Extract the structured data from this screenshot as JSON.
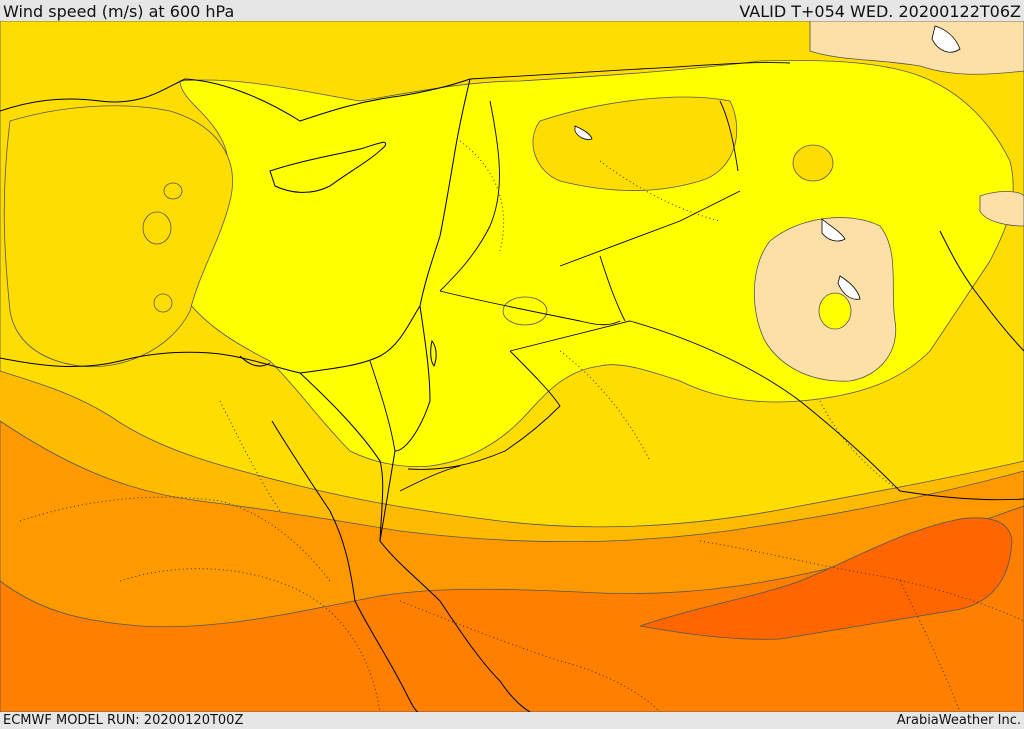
{
  "header": {
    "title": "Wind speed (m/s) at 600 hPa",
    "valid": "VALID T+054 WED. 20200122T06Z"
  },
  "footer": {
    "model_run": "ECMWF MODEL RUN: 20200120T00Z",
    "credit": "ArabiaWeather Inc."
  },
  "colors": {
    "band_pale": "#fde0a8",
    "band_yellow": "#ffff00",
    "band_gold": "#ffdd00",
    "band_amber": "#ffbb00",
    "band_orange": "#ff9900",
    "band_dark_orange": "#ff7f00",
    "band_red_orange": "#ff6600",
    "coast_line": "#000000",
    "contour_line": "#555555"
  }
}
